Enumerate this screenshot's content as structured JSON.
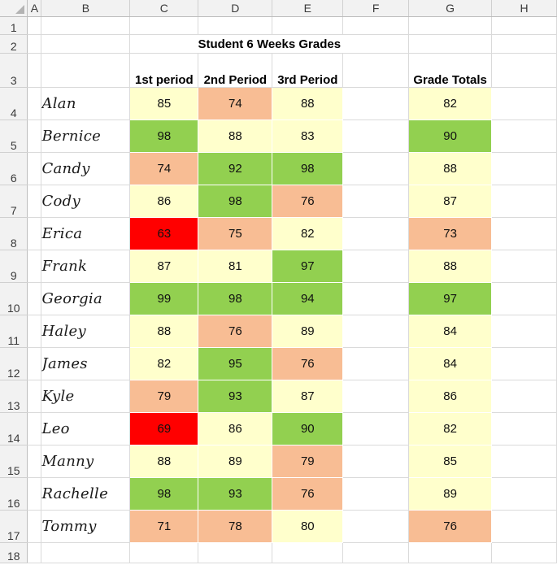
{
  "columns": [
    "A",
    "B",
    "C",
    "D",
    "E",
    "F",
    "G",
    "H"
  ],
  "title": "Student 6 Weeks Grades",
  "headers": {
    "p1": "1st period",
    "p2": "2nd Period",
    "p3": "3rd Period",
    "totals": "Grade Totals"
  },
  "colors": {
    "green": "#92d050",
    "yellow": "#ffffcc",
    "orange": "#f8bd94",
    "red": "#ff0000"
  },
  "students": [
    {
      "row": "4",
      "name": "Alan",
      "p1": "85",
      "p2": "74",
      "p3": "88",
      "total": "82",
      "c": [
        "yellow",
        "orange",
        "yellow",
        "yellow"
      ]
    },
    {
      "row": "5",
      "name": "Bernice",
      "p1": "98",
      "p2": "88",
      "p3": "83",
      "total": "90",
      "c": [
        "green",
        "yellow",
        "yellow",
        "green"
      ]
    },
    {
      "row": "6",
      "name": "Candy",
      "p1": "74",
      "p2": "92",
      "p3": "98",
      "total": "88",
      "c": [
        "orange",
        "green",
        "green",
        "yellow"
      ]
    },
    {
      "row": "7",
      "name": "Cody",
      "p1": "86",
      "p2": "98",
      "p3": "76",
      "total": "87",
      "c": [
        "yellow",
        "green",
        "orange",
        "yellow"
      ]
    },
    {
      "row": "8",
      "name": "Erica",
      "p1": "63",
      "p2": "75",
      "p3": "82",
      "total": "73",
      "c": [
        "red",
        "orange",
        "yellow",
        "orange"
      ]
    },
    {
      "row": "9",
      "name": "Frank",
      "p1": "87",
      "p2": "81",
      "p3": "97",
      "total": "88",
      "c": [
        "yellow",
        "yellow",
        "green",
        "yellow"
      ]
    },
    {
      "row": "10",
      "name": "Georgia",
      "p1": "99",
      "p2": "98",
      "p3": "94",
      "total": "97",
      "c": [
        "green",
        "green",
        "green",
        "green"
      ]
    },
    {
      "row": "11",
      "name": "Haley",
      "p1": "88",
      "p2": "76",
      "p3": "89",
      "total": "84",
      "c": [
        "yellow",
        "orange",
        "yellow",
        "yellow"
      ]
    },
    {
      "row": "12",
      "name": "James",
      "p1": "82",
      "p2": "95",
      "p3": "76",
      "total": "84",
      "c": [
        "yellow",
        "green",
        "orange",
        "yellow"
      ]
    },
    {
      "row": "13",
      "name": "Kyle",
      "p1": "79",
      "p2": "93",
      "p3": "87",
      "total": "86",
      "c": [
        "orange",
        "green",
        "yellow",
        "yellow"
      ]
    },
    {
      "row": "14",
      "name": "Leo",
      "p1": "69",
      "p2": "86",
      "p3": "90",
      "total": "82",
      "c": [
        "red",
        "yellow",
        "green",
        "yellow"
      ]
    },
    {
      "row": "15",
      "name": "Manny",
      "p1": "88",
      "p2": "89",
      "p3": "79",
      "total": "85",
      "c": [
        "yellow",
        "yellow",
        "orange",
        "yellow"
      ]
    },
    {
      "row": "16",
      "name": "Rachelle",
      "p1": "98",
      "p2": "93",
      "p3": "76",
      "total": "89",
      "c": [
        "green",
        "green",
        "orange",
        "yellow"
      ]
    },
    {
      "row": "17",
      "name": "Tommy",
      "p1": "71",
      "p2": "78",
      "p3": "80",
      "total": "76",
      "c": [
        "orange",
        "orange",
        "yellow",
        "orange"
      ]
    }
  ]
}
